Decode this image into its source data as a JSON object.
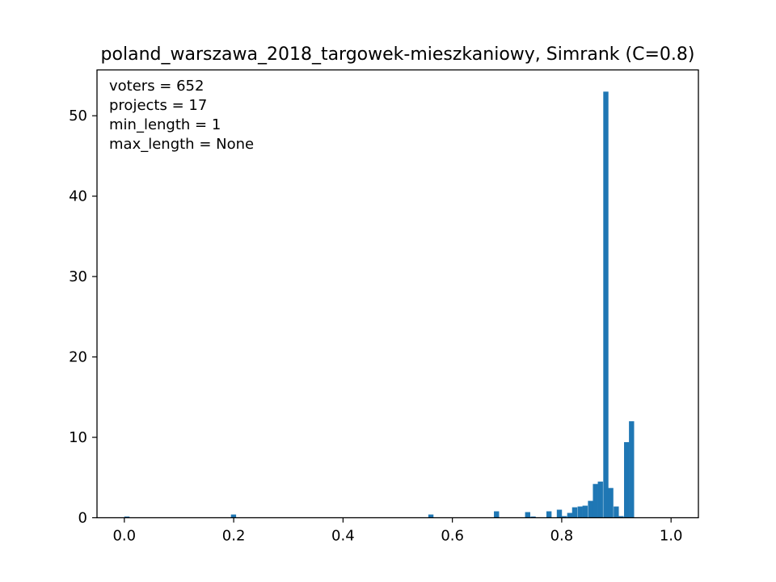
{
  "chart_data": {
    "type": "bar",
    "title": "poland_warszawa_2018_targowek-mieszkaniowy, Simrank (C=0.8)",
    "xlabel": "",
    "ylabel": "",
    "xlim": [
      -0.05,
      1.05
    ],
    "ylim": [
      0,
      55.7
    ],
    "bin_width": 0.00944,
    "color": "#1f77b4",
    "grid": false,
    "x_ticks": [
      {
        "value": 0.0,
        "label": "0.0"
      },
      {
        "value": 0.2,
        "label": "0.2"
      },
      {
        "value": 0.4,
        "label": "0.4"
      },
      {
        "value": 0.6,
        "label": "0.6"
      },
      {
        "value": 0.8,
        "label": "0.8"
      },
      {
        "value": 1.0,
        "label": "1.0"
      }
    ],
    "y_ticks": [
      {
        "value": 0,
        "label": "0"
      },
      {
        "value": 10,
        "label": "10"
      },
      {
        "value": 20,
        "label": "20"
      },
      {
        "value": 30,
        "label": "30"
      },
      {
        "value": 40,
        "label": "40"
      },
      {
        "value": 50,
        "label": "50"
      }
    ],
    "bins": [
      {
        "x": 0.0,
        "value": 0.15
      },
      {
        "x": 0.195,
        "value": 0.4
      },
      {
        "x": 0.556,
        "value": 0.4
      },
      {
        "x": 0.676,
        "value": 0.8
      },
      {
        "x": 0.733,
        "value": 0.7
      },
      {
        "x": 0.743,
        "value": 0.15
      },
      {
        "x": 0.772,
        "value": 0.8
      },
      {
        "x": 0.791,
        "value": 1.0
      },
      {
        "x": 0.8,
        "value": 0.2
      },
      {
        "x": 0.81,
        "value": 0.6
      },
      {
        "x": 0.819,
        "value": 1.3
      },
      {
        "x": 0.829,
        "value": 1.4
      },
      {
        "x": 0.838,
        "value": 1.5
      },
      {
        "x": 0.848,
        "value": 2.1
      },
      {
        "x": 0.857,
        "value": 4.2
      },
      {
        "x": 0.866,
        "value": 4.5
      },
      {
        "x": 0.876,
        "value": 53.0
      },
      {
        "x": 0.885,
        "value": 3.7
      },
      {
        "x": 0.895,
        "value": 1.4
      },
      {
        "x": 0.904,
        "value": 0.2
      },
      {
        "x": 0.914,
        "value": 9.4
      },
      {
        "x": 0.923,
        "value": 12.0
      }
    ],
    "annotations": [
      "voters = 652",
      "projects = 17",
      "min_length = 1",
      "max_length = None"
    ],
    "annotation_position": "top-left"
  }
}
